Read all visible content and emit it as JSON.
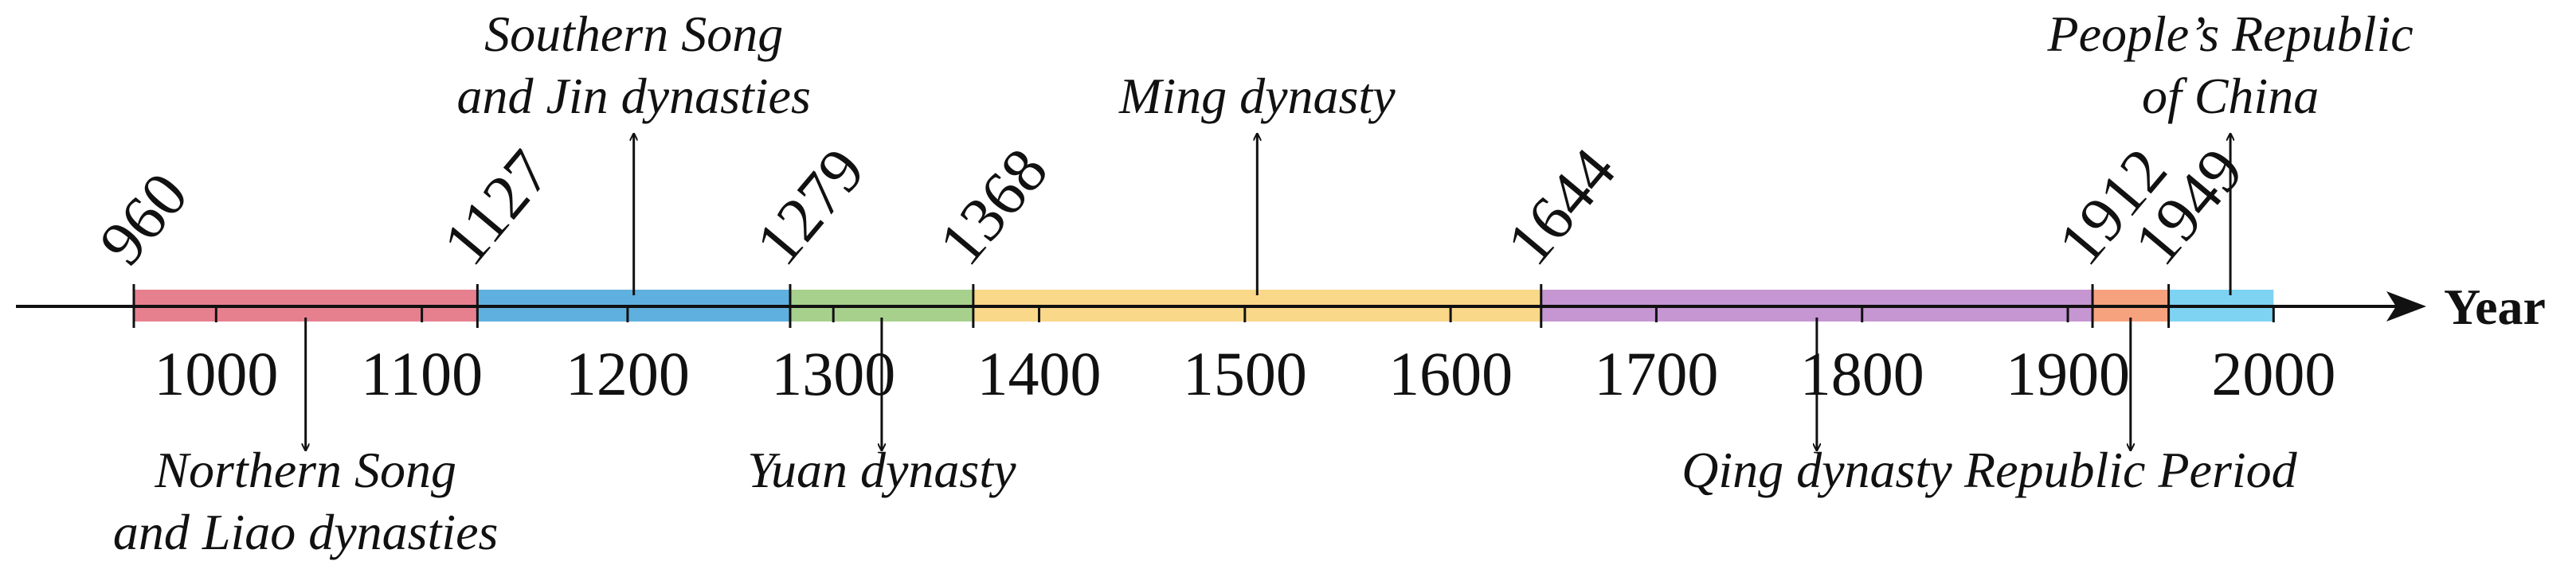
{
  "timeline": {
    "axis_title": "Year",
    "ticks": [
      1000,
      1100,
      1200,
      1300,
      1400,
      1500,
      1600,
      1700,
      1800,
      1900,
      2000
    ],
    "periods": [
      {
        "start": 960,
        "end": 1127,
        "color": "#e6808f",
        "label_lines": [
          "Northern Song",
          "and Liao dynasties"
        ],
        "label_side": "below"
      },
      {
        "start": 1127,
        "end": 1279,
        "color": "#5fb0de",
        "label_lines": [
          "Southern Song",
          "and Jin dynasties"
        ],
        "label_side": "above"
      },
      {
        "start": 1279,
        "end": 1368,
        "color": "#a8d08d",
        "label_lines": [
          "Yuan dynasty"
        ],
        "label_side": "below"
      },
      {
        "start": 1368,
        "end": 1644,
        "color": "#f9d88a",
        "label_lines": [
          "Ming dynasty"
        ],
        "label_side": "above"
      },
      {
        "start": 1644,
        "end": 1912,
        "color": "#c596d2",
        "label_lines": [
          "Qing dynasty"
        ],
        "label_side": "below"
      },
      {
        "start": 1912,
        "end": 1949,
        "color": "#f7a27e",
        "label_lines": [
          "Republic Period"
        ],
        "label_side": "below"
      },
      {
        "start": 1949,
        "end": 2000,
        "color": "#7fd3f2",
        "label_lines": [
          "People’s Republic",
          "of China"
        ],
        "label_side": "above"
      }
    ],
    "boundary_years": [
      "960",
      "1127",
      "1279",
      "1368",
      "1644",
      "1912",
      "1949"
    ]
  }
}
